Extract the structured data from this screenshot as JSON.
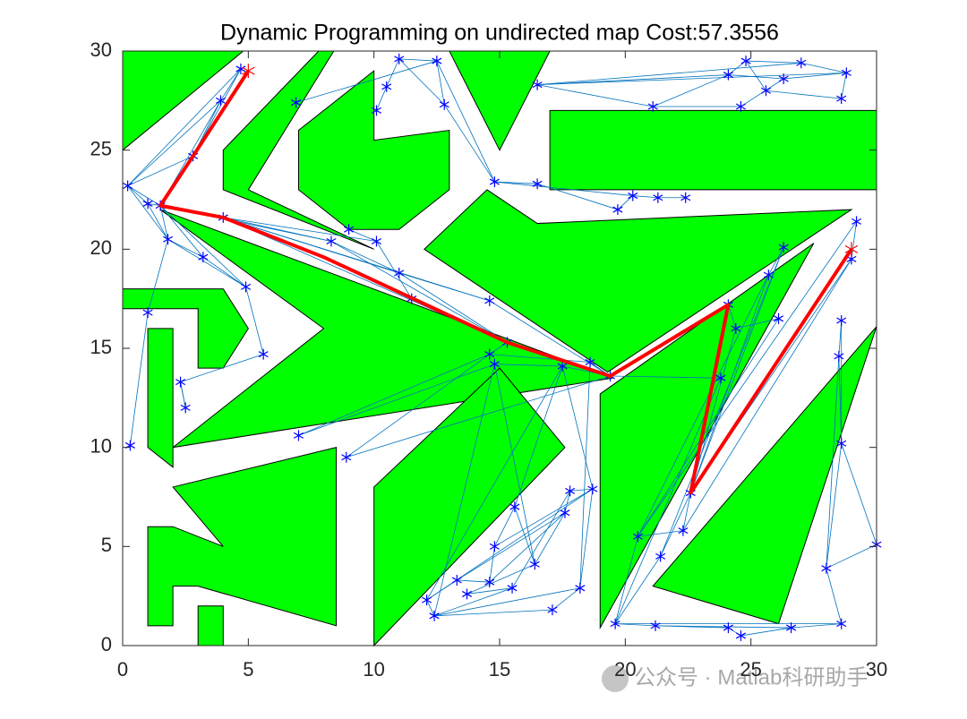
{
  "chart_data": {
    "type": "roadmap",
    "title": "Dynamic Programming on undirected map  Cost:57.3556",
    "xlim": [
      0,
      30
    ],
    "ylim": [
      0,
      30
    ],
    "xticks": [
      0,
      5,
      10,
      15,
      20,
      25,
      30
    ],
    "yticks": [
      0,
      5,
      10,
      15,
      20,
      25,
      30
    ],
    "obstacle_color": "#00ff00",
    "edge_color": "#0072bd",
    "node_color": "#0000ff",
    "path_color": "#ff0000",
    "obstacles": [
      {
        "x": [
          0,
          0,
          4.8
        ],
        "y": [
          25,
          30,
          30
        ]
      },
      {
        "x": [
          4,
          7.8,
          8.4,
          5,
          10,
          4
        ],
        "y": [
          25,
          30,
          30,
          23,
          20,
          23
        ]
      },
      {
        "x": [
          7,
          10,
          10,
          13,
          13,
          11,
          9,
          7
        ],
        "y": [
          26,
          29,
          25.5,
          26,
          23,
          21,
          21,
          23
        ]
      },
      {
        "x": [
          13,
          17,
          15
        ],
        "y": [
          30,
          30,
          25
        ]
      },
      {
        "x": [
          17,
          30,
          30,
          17
        ],
        "y": [
          27,
          27,
          23,
          23
        ]
      },
      {
        "x": [
          1.5,
          19.5,
          2,
          8
        ],
        "y": [
          22,
          13.5,
          10,
          16
        ]
      },
      {
        "x": [
          12,
          14.5,
          16.5,
          29,
          19.3
        ],
        "y": [
          20,
          23,
          21.3,
          22,
          13.8
        ]
      },
      {
        "x": [
          19,
          19,
          27.5
        ],
        "y": [
          12.7,
          0.9,
          20.3
        ]
      },
      {
        "x": [
          21.1,
          30,
          26.1
        ],
        "y": [
          3,
          16.1,
          1.1
        ]
      },
      {
        "x": [
          0,
          4,
          5,
          4,
          3,
          3,
          0
        ],
        "y": [
          18,
          18,
          16,
          14,
          14,
          17,
          17
        ]
      },
      {
        "x": [
          1,
          2,
          2,
          1
        ],
        "y": [
          16,
          16,
          9,
          10
        ]
      },
      {
        "x": [
          2,
          8.5,
          8.5,
          3,
          2,
          2,
          1,
          1,
          2,
          4
        ],
        "y": [
          8,
          10,
          1,
          3,
          3,
          1,
          1,
          6,
          6,
          5
        ]
      },
      {
        "x": [
          3,
          4,
          4,
          3
        ],
        "y": [
          0,
          0,
          2,
          2
        ]
      },
      {
        "x": [
          10,
          10,
          15,
          17.6
        ],
        "y": [
          0,
          8,
          14,
          10
        ]
      }
    ],
    "nodes": {
      "x": [
        0.2,
        1,
        1.5,
        1.8,
        3.2,
        4,
        4.9,
        5.6,
        2.3,
        2.5,
        0.3,
        1,
        2.8,
        3.9,
        4.7,
        6.9,
        8.3,
        9,
        10.1,
        11,
        11.5,
        10.1,
        10.5,
        11,
        12.5,
        12.8,
        14.8,
        16.5,
        16.5,
        14.6,
        15.3,
        14.6,
        14.8,
        17.5,
        18.6,
        19.4,
        7,
        8.9,
        19.7,
        20.3,
        21.3,
        22.4,
        21.1,
        24.1,
        24.8,
        24.6,
        25.6,
        26.3,
        27,
        28.6,
        28.8,
        24.1,
        24.4,
        25.7,
        26.3,
        26.1,
        28.6,
        29.2,
        29,
        28.5,
        22.6,
        23.8,
        28.6,
        30,
        28,
        28.6,
        26.6,
        24.6,
        24.1,
        21.2,
        19.6,
        20.5,
        21.4,
        22.3,
        17.1,
        18.2,
        18.7,
        17.8,
        17.6,
        16.4,
        15.6,
        14.8,
        14.6,
        13.3,
        12.1,
        12.4,
        15.5,
        13.7
      ],
      "y": [
        23.2,
        22.3,
        22.2,
        20.5,
        19.6,
        21.6,
        18.1,
        14.7,
        13.3,
        12,
        10.1,
        16.8,
        24.7,
        27.5,
        29.1,
        27.4,
        20.4,
        21,
        20.4,
        18.8,
        17.5,
        27,
        28.2,
        29.6,
        29.5,
        27.3,
        23.4,
        23.3,
        28.3,
        17.4,
        15.3,
        14.7,
        14.2,
        14.1,
        14.3,
        13.6,
        10.6,
        9.5,
        22,
        22.7,
        22.6,
        22.6,
        27.2,
        28.8,
        29.5,
        27.2,
        28,
        28.6,
        29.4,
        27.6,
        28.9,
        17.2,
        16,
        18.7,
        20.1,
        16.5,
        16.4,
        21.4,
        19.5,
        14.6,
        7.7,
        13.5,
        10.2,
        5.1,
        3.9,
        1.1,
        0.9,
        0.5,
        0.9,
        1,
        1.1,
        5.5,
        4.5,
        5.8,
        1.8,
        2.9,
        7.9,
        7.8,
        6.7,
        4.1,
        7,
        5,
        3.2,
        3.3,
        2.3,
        1.5,
        2.9,
        2.6
      ]
    },
    "edges": [
      [
        0,
        1
      ],
      [
        0,
        2
      ],
      [
        0,
        12
      ],
      [
        0,
        13
      ],
      [
        0,
        14
      ],
      [
        0,
        3
      ],
      [
        1,
        2
      ],
      [
        1,
        3
      ],
      [
        2,
        3
      ],
      [
        2,
        12
      ],
      [
        2,
        13
      ],
      [
        2,
        5
      ],
      [
        2,
        4
      ],
      [
        2,
        6
      ],
      [
        3,
        4
      ],
      [
        3,
        6
      ],
      [
        4,
        6
      ],
      [
        5,
        16
      ],
      [
        5,
        18
      ],
      [
        5,
        19
      ],
      [
        5,
        29
      ],
      [
        5,
        30
      ],
      [
        12,
        14
      ],
      [
        13,
        14
      ],
      [
        12,
        13
      ],
      [
        2,
        16
      ],
      [
        16,
        19
      ],
      [
        16,
        30
      ],
      [
        17,
        18
      ],
      [
        18,
        20
      ],
      [
        19,
        29
      ],
      [
        19,
        30
      ],
      [
        20,
        30
      ],
      [
        29,
        35
      ],
      [
        30,
        35
      ],
      [
        30,
        31
      ],
      [
        31,
        34
      ],
      [
        32,
        33
      ],
      [
        33,
        35
      ],
      [
        34,
        35
      ],
      [
        15,
        24
      ],
      [
        21,
        22
      ],
      [
        22,
        23
      ],
      [
        23,
        24
      ],
      [
        24,
        25
      ],
      [
        23,
        25
      ],
      [
        25,
        26
      ],
      [
        24,
        26
      ],
      [
        26,
        27
      ],
      [
        27,
        38
      ],
      [
        26,
        39
      ],
      [
        38,
        39
      ],
      [
        39,
        40
      ],
      [
        40,
        41
      ],
      [
        28,
        42
      ],
      [
        28,
        43
      ],
      [
        28,
        50
      ],
      [
        28,
        48
      ],
      [
        42,
        43
      ],
      [
        42,
        45
      ],
      [
        43,
        44
      ],
      [
        44,
        46
      ],
      [
        45,
        47
      ],
      [
        46,
        49
      ],
      [
        47,
        50
      ],
      [
        48,
        50
      ],
      [
        49,
        50
      ],
      [
        44,
        48
      ],
      [
        43,
        47
      ],
      [
        36,
        31
      ],
      [
        36,
        32
      ],
      [
        37,
        35
      ],
      [
        37,
        31
      ],
      [
        35,
        51
      ],
      [
        35,
        61
      ],
      [
        51,
        60
      ],
      [
        51,
        52
      ],
      [
        52,
        60
      ],
      [
        53,
        60
      ],
      [
        54,
        60
      ],
      [
        55,
        71
      ],
      [
        53,
        71
      ],
      [
        54,
        72
      ],
      [
        56,
        62
      ],
      [
        57,
        58
      ],
      [
        58,
        60
      ],
      [
        58,
        73
      ],
      [
        57,
        71
      ],
      [
        59,
        64
      ],
      [
        62,
        63
      ],
      [
        62,
        64
      ],
      [
        63,
        64
      ],
      [
        64,
        65
      ],
      [
        65,
        66
      ],
      [
        66,
        67
      ],
      [
        67,
        68
      ],
      [
        68,
        69
      ],
      [
        69,
        70
      ],
      [
        70,
        71
      ],
      [
        70,
        72
      ],
      [
        71,
        73
      ],
      [
        72,
        60
      ],
      [
        61,
        70
      ],
      [
        60,
        73
      ],
      [
        74,
        75
      ],
      [
        75,
        76
      ],
      [
        76,
        77
      ],
      [
        77,
        78
      ],
      [
        78,
        79
      ],
      [
        79,
        80
      ],
      [
        80,
        81
      ],
      [
        81,
        82
      ],
      [
        82,
        83
      ],
      [
        83,
        84
      ],
      [
        84,
        85
      ],
      [
        85,
        86
      ],
      [
        86,
        87
      ],
      [
        87,
        79
      ],
      [
        85,
        75
      ],
      [
        84,
        76
      ],
      [
        81,
        76
      ],
      [
        83,
        78
      ],
      [
        84,
        33
      ],
      [
        32,
        79
      ],
      [
        33,
        76
      ],
      [
        34,
        75
      ],
      [
        32,
        85
      ],
      [
        80,
        33
      ],
      [
        86,
        77
      ],
      [
        82,
        78
      ],
      [
        85,
        74
      ],
      [
        70,
        65
      ],
      [
        69,
        66
      ],
      [
        56,
        59
      ],
      [
        59,
        62
      ],
      [
        52,
        55
      ],
      [
        53,
        54
      ],
      [
        6,
        7
      ],
      [
        7,
        8
      ],
      [
        8,
        9
      ],
      [
        10,
        11
      ],
      [
        11,
        3
      ],
      [
        9,
        8
      ]
    ],
    "path": {
      "x": [
        5,
        2.8,
        1.5,
        4,
        8,
        15.3,
        19.4,
        24.1,
        22.6,
        29
      ],
      "y": [
        29,
        24.7,
        22.2,
        21.6,
        19.6,
        15.3,
        13.6,
        17.2,
        7.7,
        20
      ]
    },
    "watermark": "公众号 · Matlab科研助手"
  }
}
